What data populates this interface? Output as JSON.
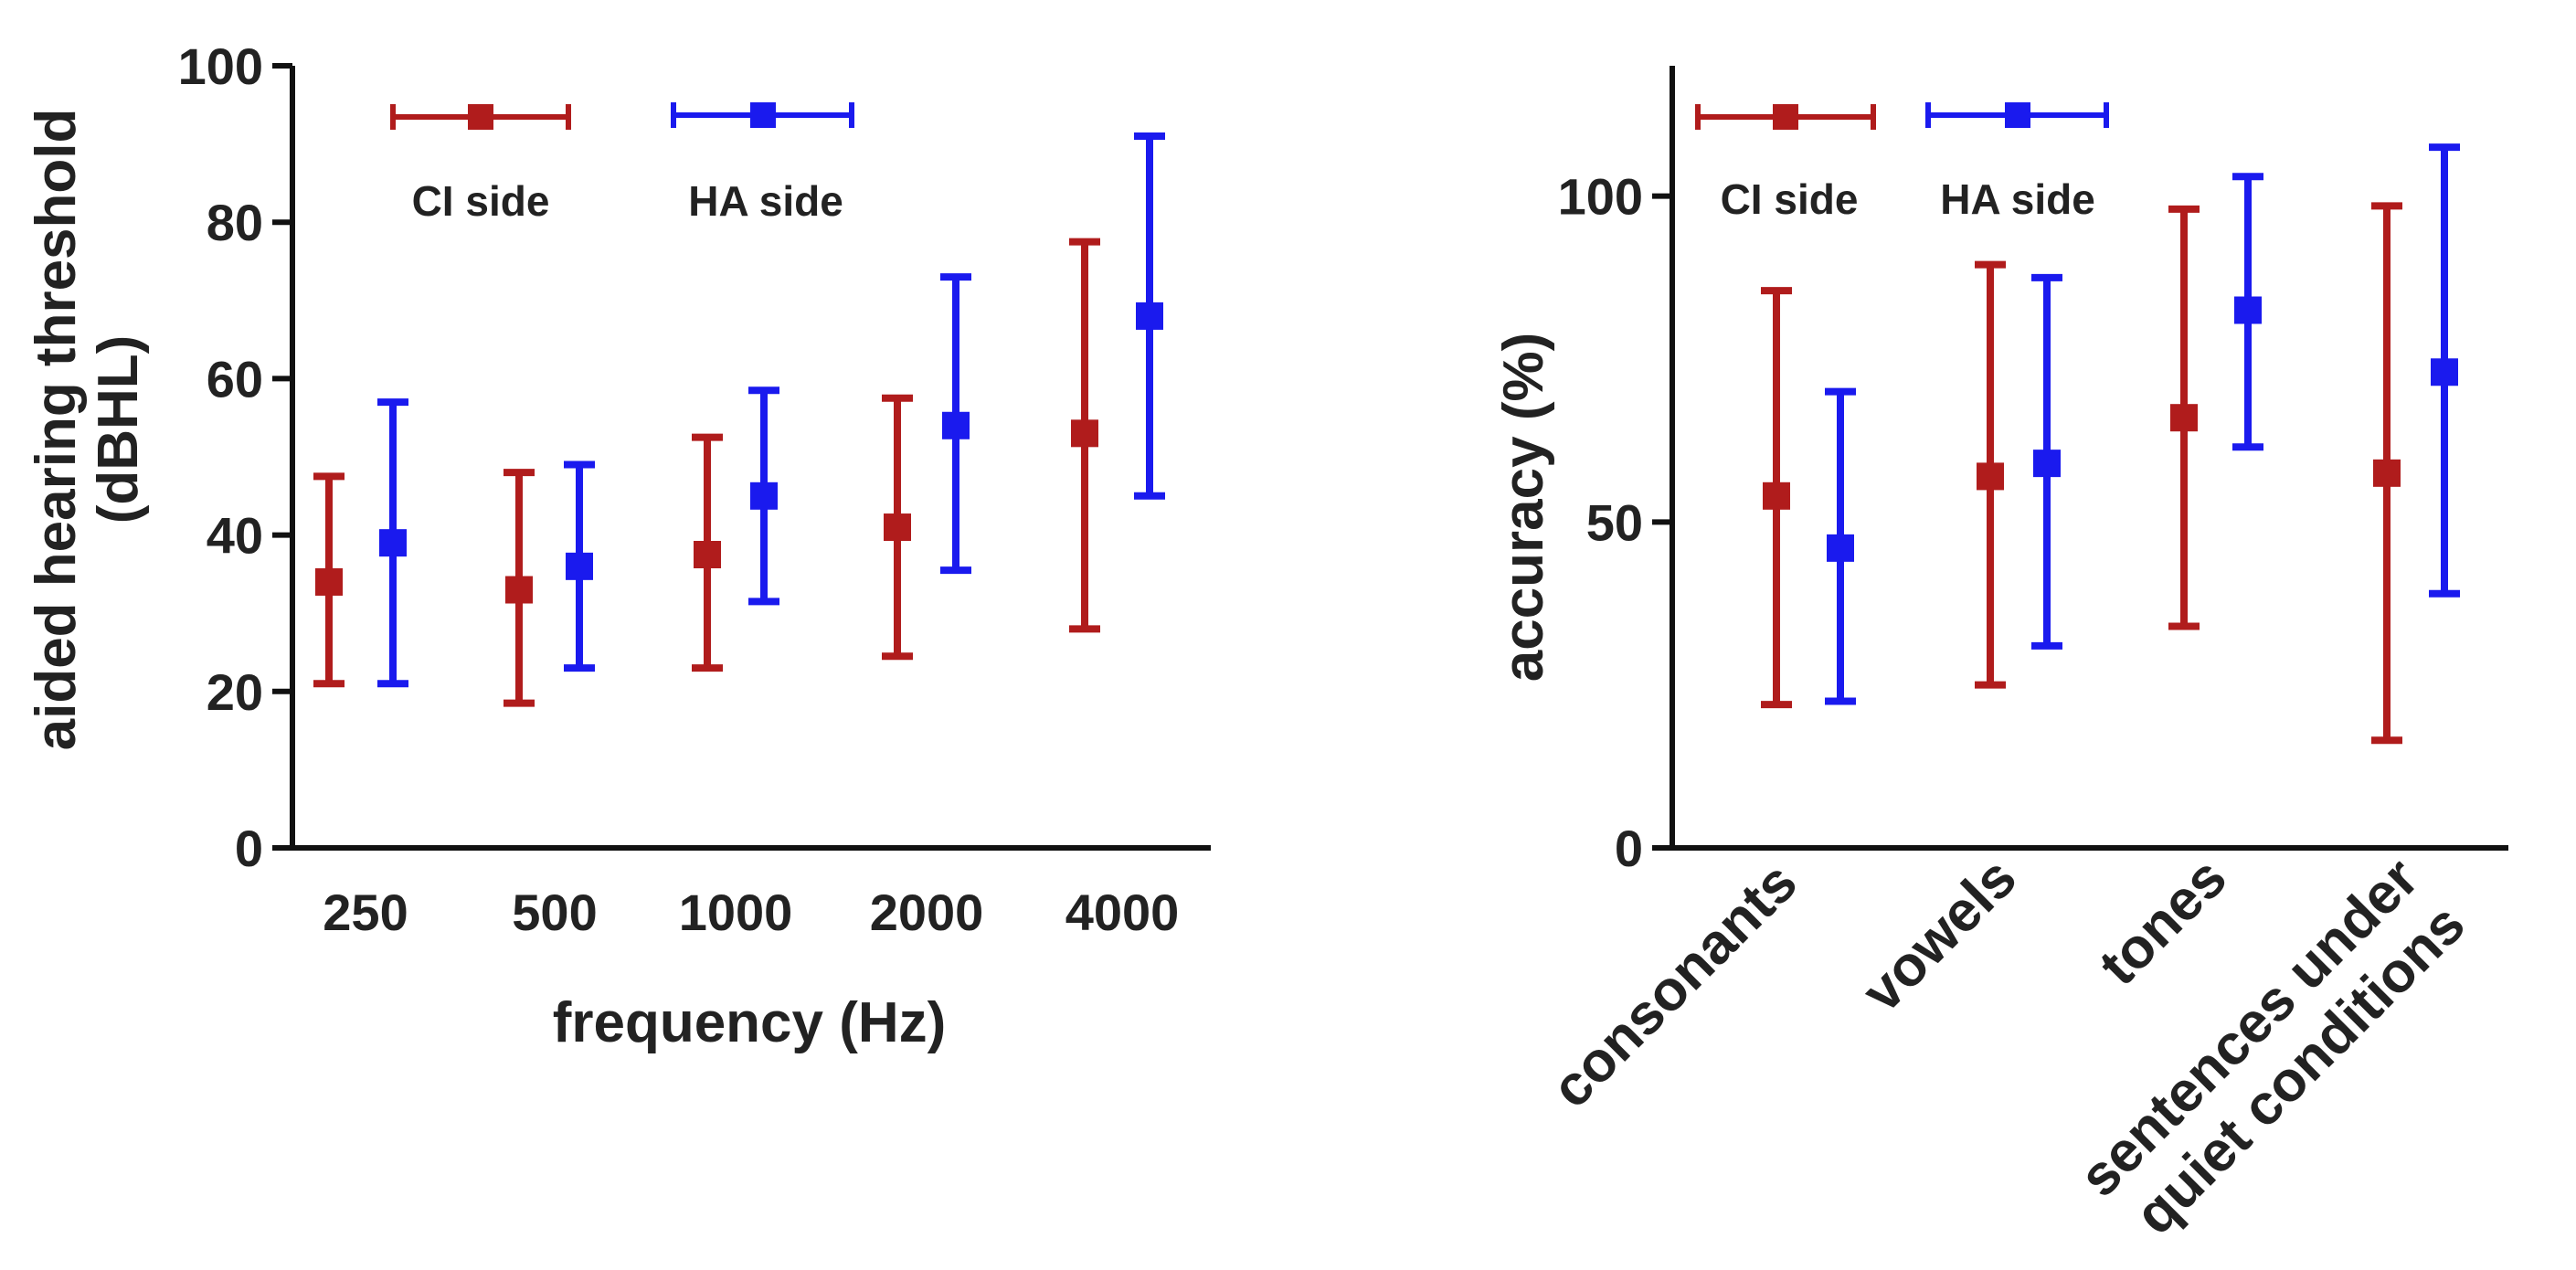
{
  "colors": {
    "ci": "#b01c1c",
    "ha": "#1a1aee",
    "axis": "#111111",
    "text": "#222222"
  },
  "chart_data": [
    {
      "type": "scatter",
      "variant": "errorbar",
      "title": "",
      "xlabel": "frequency (Hz)",
      "ylabel": "aided hearing threshold (dBHL)",
      "ylabel_lines": [
        "aided hearing threshold",
        "(dBHL)"
      ],
      "ylim": [
        0,
        100
      ],
      "yticks": [
        0,
        20,
        40,
        60,
        80,
        100
      ],
      "yticks_labels": [
        "0",
        "20",
        "40",
        "60",
        "80",
        "100"
      ],
      "categories": [
        "250",
        "500",
        "1000",
        "2000",
        "4000"
      ],
      "legend_position": "top",
      "series": [
        {
          "name": "CI side",
          "color_key": "ci",
          "values": [
            34,
            33,
            37.5,
            41,
            53
          ],
          "lower": [
            21,
            18.5,
            23,
            24.5,
            28
          ],
          "upper": [
            47.5,
            48,
            52.5,
            57.5,
            77.5
          ]
        },
        {
          "name": "HA side",
          "color_key": "ha",
          "values": [
            39,
            36,
            45,
            54,
            68
          ],
          "lower": [
            21,
            23,
            31.5,
            35.5,
            45
          ],
          "upper": [
            57,
            49,
            58.5,
            73,
            91
          ]
        }
      ]
    },
    {
      "type": "scatter",
      "variant": "errorbar",
      "title": "",
      "xlabel": "",
      "ylabel": "accuracy (%)",
      "ylim": [
        0,
        120
      ],
      "yticks": [
        0,
        50,
        100
      ],
      "yticks_labels": [
        "0",
        "50",
        "100"
      ],
      "categories": [
        "consonants",
        "vowels",
        "tones",
        "sentences under quiet conditions"
      ],
      "category_lines": [
        [
          "consonants"
        ],
        [
          "vowels"
        ],
        [
          "tones"
        ],
        [
          "sentences under",
          "quiet conditions"
        ]
      ],
      "legend_position": "top",
      "series": [
        {
          "name": "CI side",
          "color_key": "ci",
          "values": [
            54,
            57,
            66,
            57.5
          ],
          "lower": [
            22,
            25,
            34,
            16.5
          ],
          "upper": [
            85.5,
            89.5,
            98,
            98.5
          ]
        },
        {
          "name": "HA side",
          "color_key": "ha",
          "values": [
            46,
            59,
            82.5,
            73
          ],
          "lower": [
            22.5,
            31,
            61.5,
            39
          ],
          "upper": [
            70,
            87.5,
            103,
            107.5
          ]
        }
      ]
    }
  ]
}
